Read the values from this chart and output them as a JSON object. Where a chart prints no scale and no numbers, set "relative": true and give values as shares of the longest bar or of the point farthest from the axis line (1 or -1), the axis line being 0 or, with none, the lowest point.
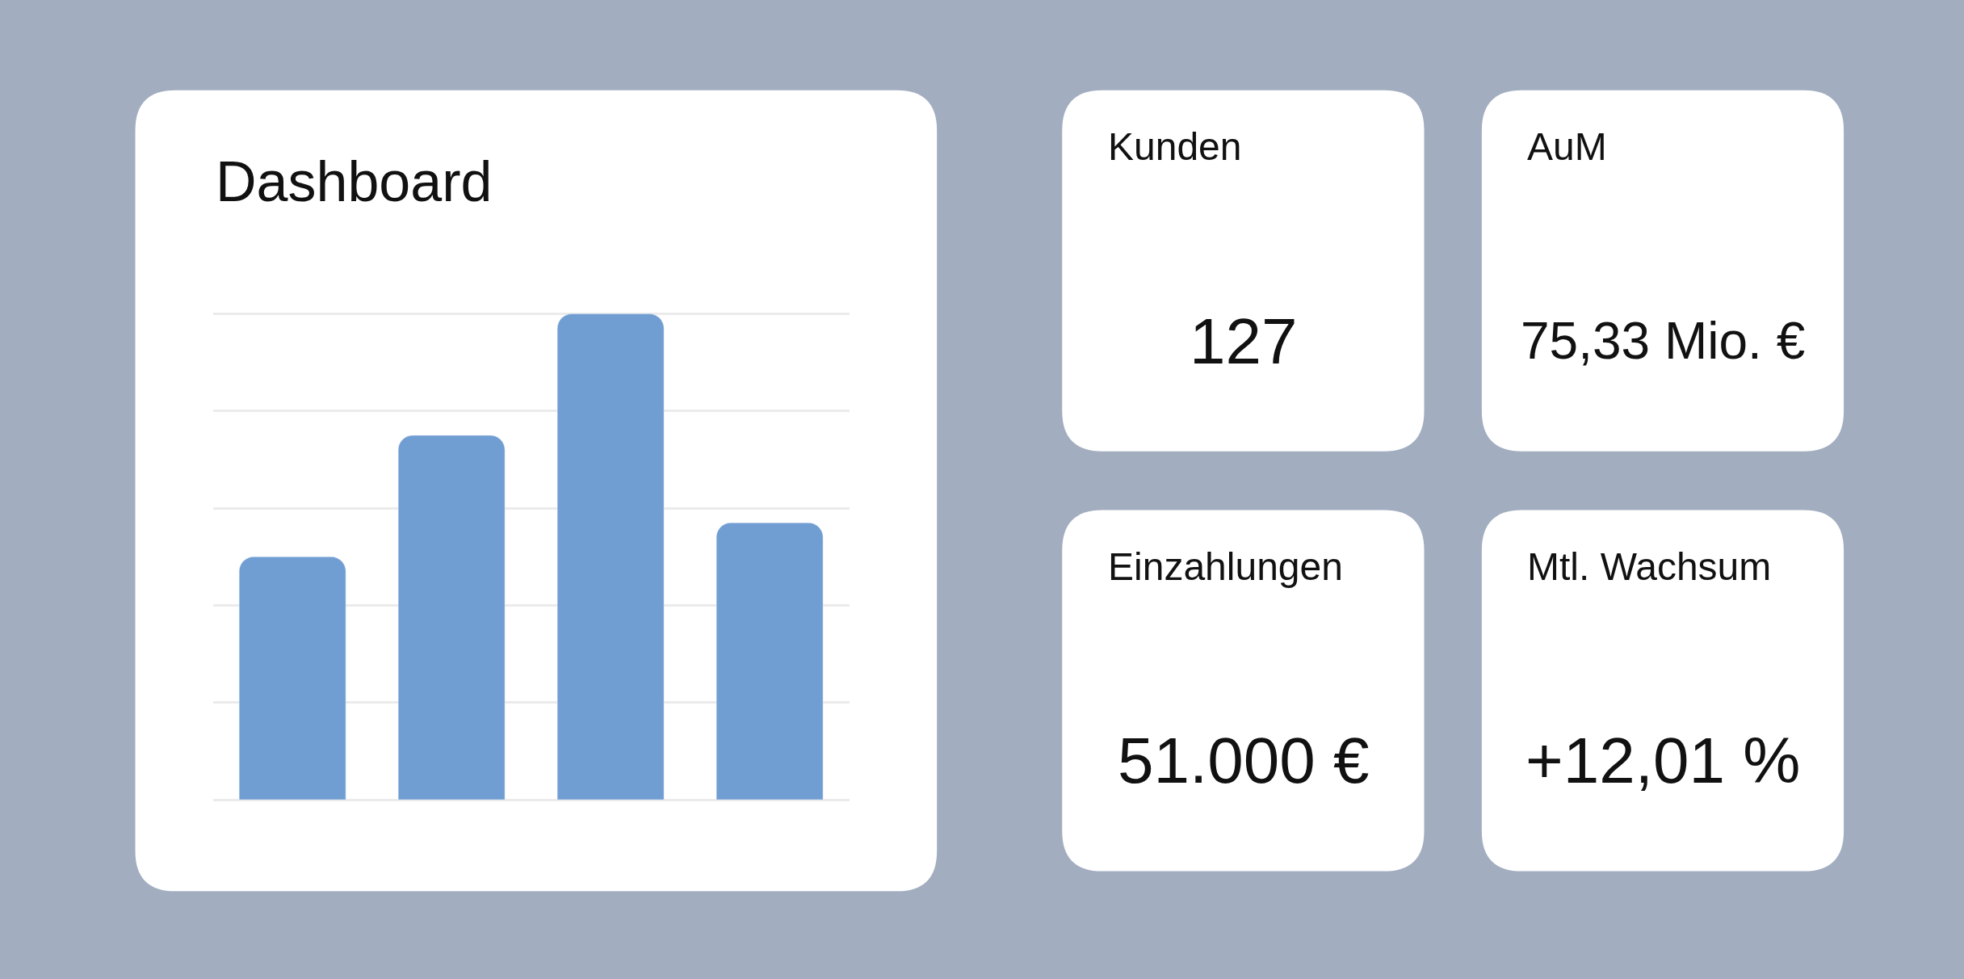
{
  "chart_data": [
    {
      "type": "bar",
      "title": "Dashboard",
      "relative": true,
      "categories": [
        null,
        null,
        null,
        null
      ],
      "values": [
        0.5,
        0.75,
        1.0,
        0.57
      ],
      "color": "#709dd2",
      "grid": "y"
    },
    {
      "type": "other",
      "title": "Kunden",
      "annotations": [
        "127"
      ]
    },
    {
      "type": "other",
      "title": "AuM",
      "annotations": [
        "75,33 Mio. €"
      ]
    },
    {
      "type": "other",
      "title": "Einzahlungen",
      "annotations": [
        "51.000 €"
      ]
    },
    {
      "type": "other",
      "title": "Mtl. Wachsum",
      "annotations": [
        "+12,01 %"
      ]
    }
  ]
}
